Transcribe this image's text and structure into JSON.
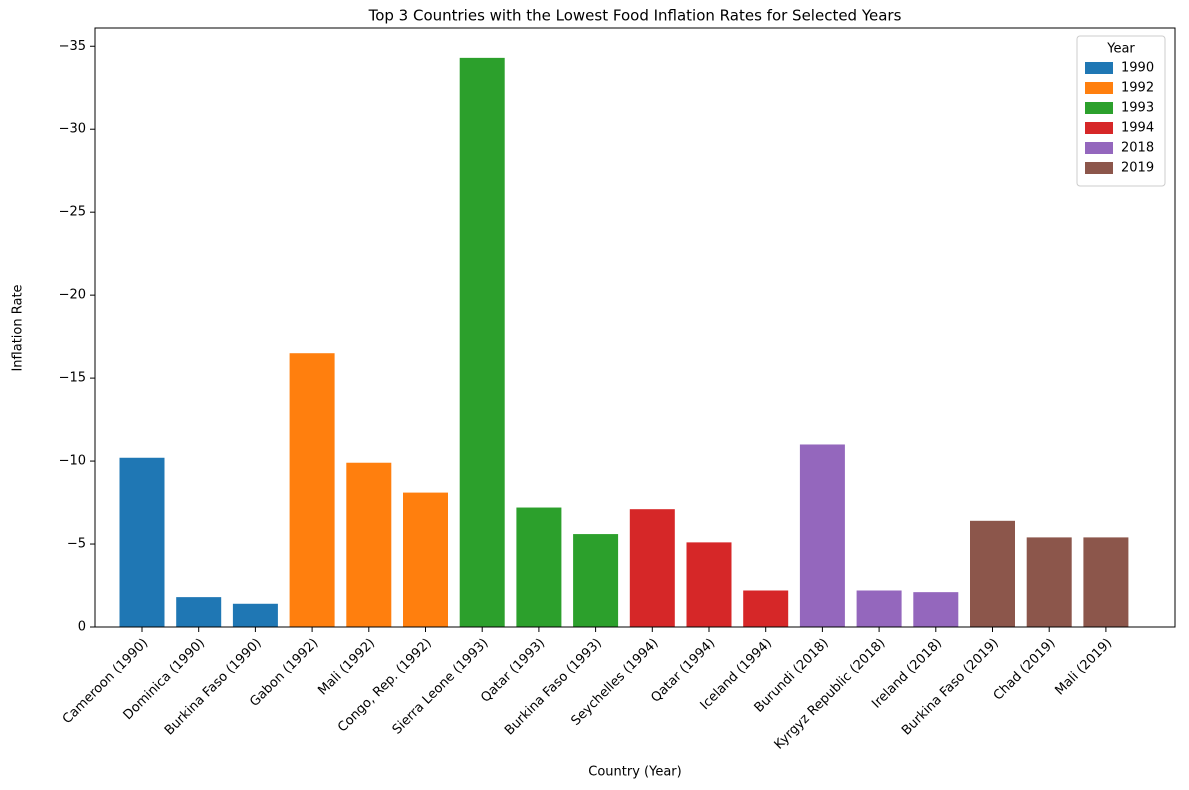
{
  "chart_data": {
    "type": "bar",
    "title": "Top 3 Countries with the Lowest Food Inflation Rates for Selected Years",
    "xlabel": "Country (Year)",
    "ylabel": "Inflation Rate",
    "categories": [
      "Cameroon (1990)",
      "Dominica (1990)",
      "Burkina Faso (1990)",
      "Gabon (1992)",
      "Mali (1992)",
      "Congo, Rep. (1992)",
      "Sierra Leone (1993)",
      "Qatar (1993)",
      "Burkina Faso (1993)",
      "Seychelles (1994)",
      "Qatar (1994)",
      "Iceland (1994)",
      "Burundi (2018)",
      "Kyrgyz Republic (2018)",
      "Ireland (2018)",
      "Burkina Faso (2019)",
      "Chad (2019)",
      "Mali (2019)"
    ],
    "series": [
      {
        "name": "1990",
        "color": "#1f77b4",
        "values": [
          -10.2,
          -1.8,
          -1.4,
          null,
          null,
          null,
          null,
          null,
          null,
          null,
          null,
          null,
          null,
          null,
          null,
          null,
          null,
          null
        ]
      },
      {
        "name": "1992",
        "color": "#ff7f0e",
        "values": [
          null,
          null,
          null,
          -16.5,
          -9.9,
          -8.1,
          null,
          null,
          null,
          null,
          null,
          null,
          null,
          null,
          null,
          null,
          null,
          null
        ]
      },
      {
        "name": "1993",
        "color": "#2ca02c",
        "values": [
          null,
          null,
          null,
          null,
          null,
          null,
          -34.3,
          -7.2,
          -5.6,
          null,
          null,
          null,
          null,
          null,
          null,
          null,
          null,
          null
        ]
      },
      {
        "name": "1994",
        "color": "#d62728",
        "values": [
          null,
          null,
          null,
          null,
          null,
          null,
          null,
          null,
          null,
          -7.1,
          -5.1,
          -2.2,
          null,
          null,
          null,
          null,
          null,
          null
        ]
      },
      {
        "name": "2018",
        "color": "#9467bd",
        "values": [
          null,
          null,
          null,
          null,
          null,
          null,
          null,
          null,
          null,
          null,
          null,
          null,
          -11.0,
          -2.2,
          -2.1,
          null,
          null,
          null
        ]
      },
      {
        "name": "2019",
        "color": "#8c564b",
        "values": [
          null,
          null,
          null,
          null,
          null,
          null,
          null,
          null,
          null,
          null,
          null,
          null,
          null,
          null,
          null,
          -6.4,
          -5.4,
          -5.4
        ]
      }
    ],
    "ylim": [
      0,
      -36.1
    ],
    "yticks": [
      0,
      {
        "value": -5,
        "label": "−5"
      },
      {
        "value": -10,
        "label": "−10"
      },
      {
        "value": -15,
        "label": "−15"
      },
      {
        "value": -20,
        "label": "−20"
      },
      {
        "value": -25,
        "label": "−25"
      },
      {
        "value": -30,
        "label": "−30"
      },
      {
        "value": -35,
        "label": "−35"
      }
    ],
    "legend_title": "Year",
    "legend": "upper right"
  }
}
